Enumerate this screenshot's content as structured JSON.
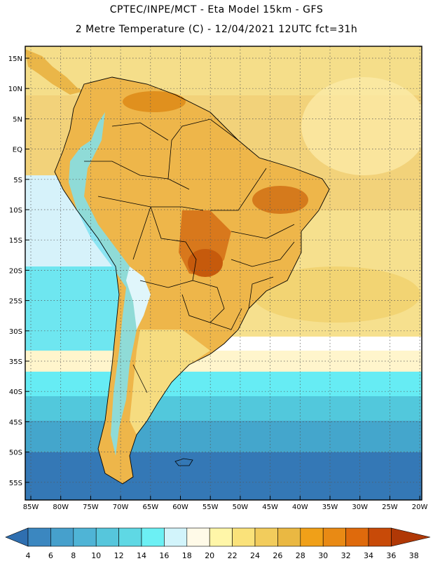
{
  "header": {
    "line1": "CPTEC/INPE/MCT -  Eta Model 15km - GFS",
    "line2": "2 Metre Temperature (C) - 12/04/2021 12UTC fct=31h"
  },
  "map": {
    "region": "South America",
    "lat_ticks": [
      "15N",
      "10N",
      "5N",
      "EQ",
      "5S",
      "10S",
      "15S",
      "20S",
      "25S",
      "30S",
      "35S",
      "40S",
      "45S",
      "50S",
      "55S"
    ],
    "lon_ticks": [
      "85W",
      "80W",
      "75W",
      "70W",
      "65W",
      "60W",
      "55W",
      "50W",
      "45W",
      "40W",
      "35W",
      "30W",
      "25W",
      "20W"
    ],
    "grid": "dotted"
  },
  "colorbar": {
    "labels": [
      "4",
      "6",
      "8",
      "10",
      "12",
      "14",
      "16",
      "18",
      "20",
      "22",
      "24",
      "26",
      "28",
      "30",
      "32",
      "34",
      "36",
      "38"
    ],
    "colors": [
      "#2f6fb0",
      "#3b87c0",
      "#46a0cc",
      "#4fb4d6",
      "#56c6dc",
      "#5fd8e4",
      "#6cf0f4",
      "#d2f4fb",
      "#fffae8",
      "#fff6a8",
      "#fae27a",
      "#f2cc5c",
      "#eab842",
      "#f0a018",
      "#e98a14",
      "#df6a0c",
      "#c84a08",
      "#b03806"
    ]
  }
}
